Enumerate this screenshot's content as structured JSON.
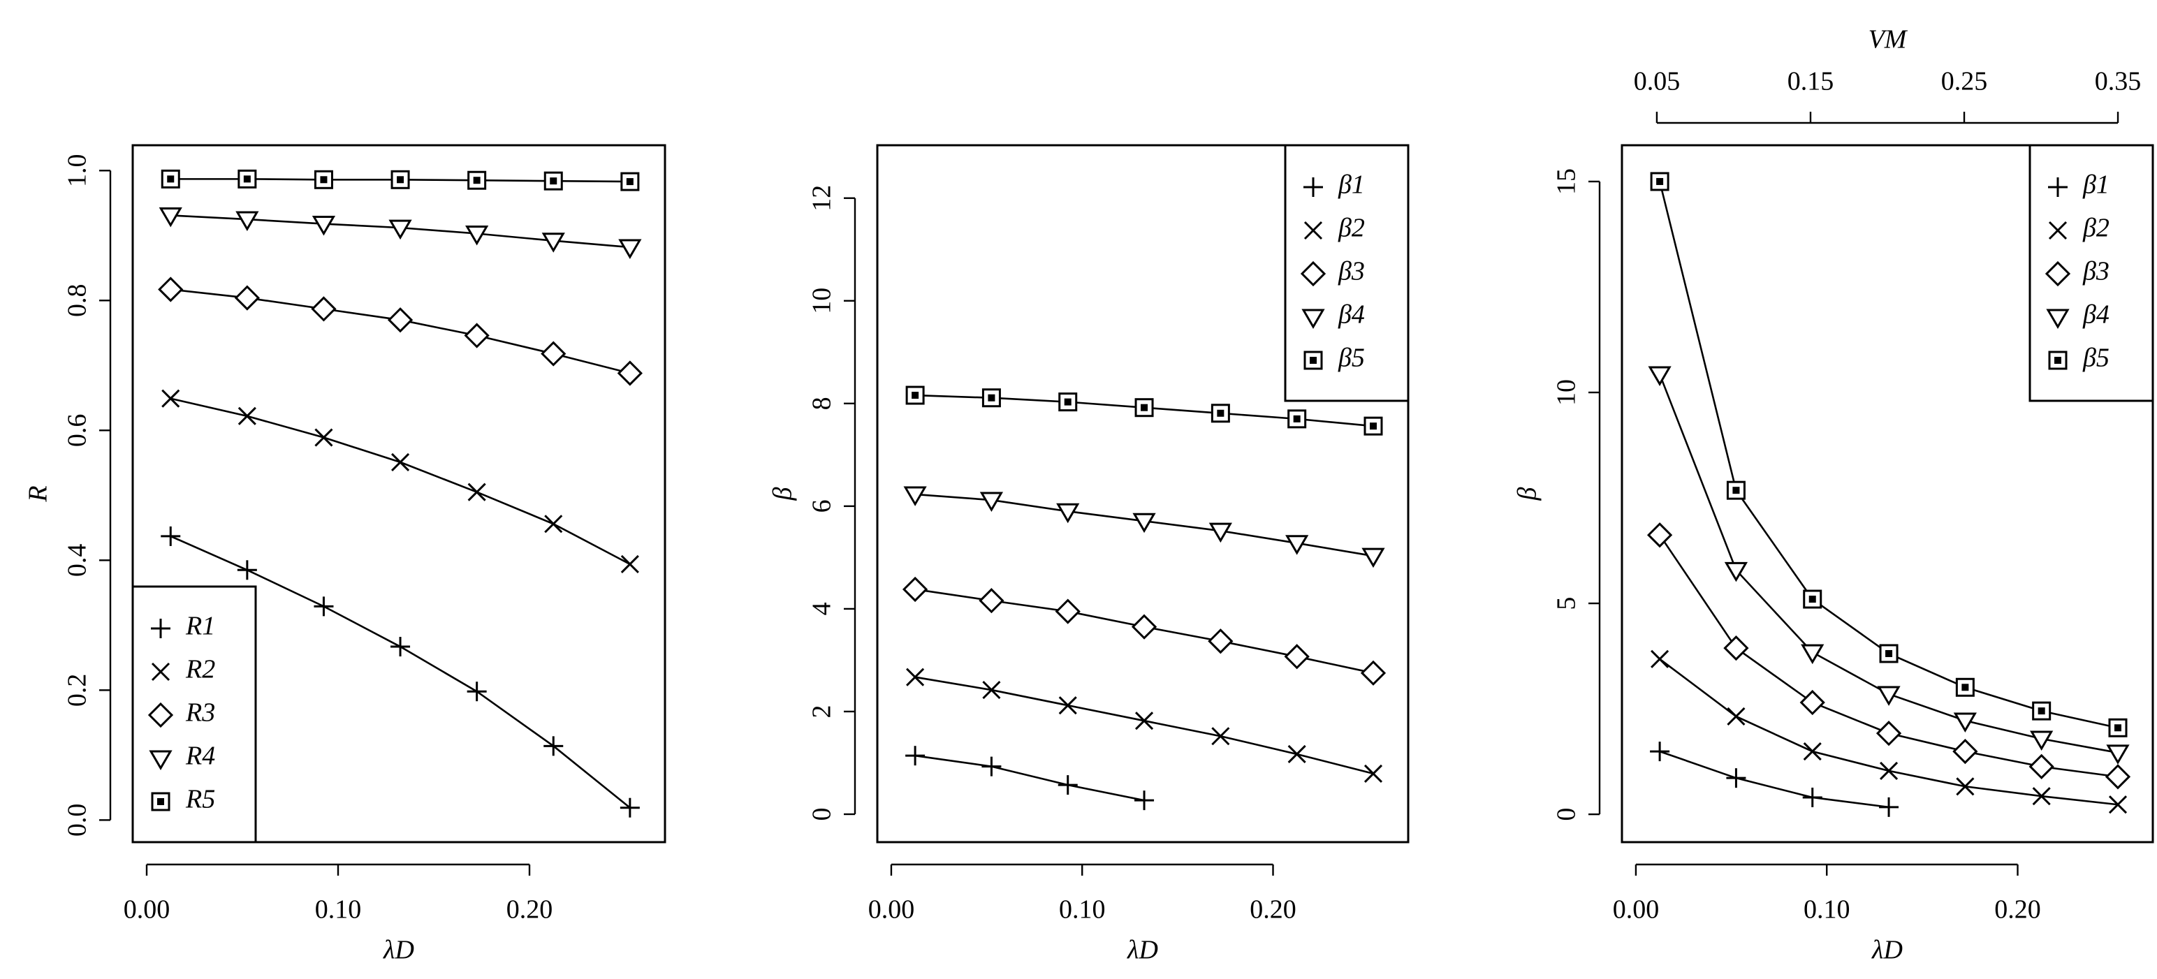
{
  "chart_data": [
    {
      "type": "line",
      "x_label": "λD",
      "y_label": "R",
      "x": [
        0.0125,
        0.0525,
        0.0925,
        0.1325,
        0.1725,
        0.2125,
        0.2525
      ],
      "xlim": [
        -0.0073,
        0.2708
      ],
      "xticks": [
        {
          "value": 0,
          "label": "0.00"
        },
        {
          "value": 0.1,
          "label": "0.10"
        },
        {
          "value": 0.2,
          "label": "0.20"
        }
      ],
      "ylim": [
        -0.034,
        1.039
      ],
      "yticks": [
        {
          "value": 0,
          "label": "0.0"
        },
        {
          "value": 0.2,
          "label": "0.2"
        },
        {
          "value": 0.4,
          "label": "0.4"
        },
        {
          "value": 0.6,
          "label": "0.6"
        },
        {
          "value": 0.8,
          "label": "0.8"
        },
        {
          "value": 1,
          "label": "1.0"
        }
      ],
      "legend": "bottom-left",
      "series": [
        {
          "name": "R1",
          "color": "#000000",
          "marker": "plus",
          "values": [
            0.437,
            0.385,
            0.329,
            0.267,
            0.198,
            0.114,
            0.019
          ]
        },
        {
          "name": "R2",
          "color": "#000000",
          "marker": "cross",
          "values": [
            0.649,
            0.622,
            0.589,
            0.551,
            0.505,
            0.456,
            0.394
          ]
        },
        {
          "name": "R3",
          "color": "#000000",
          "marker": "diamond",
          "values": [
            0.817,
            0.804,
            0.787,
            0.77,
            0.746,
            0.718,
            0.688
          ]
        },
        {
          "name": "R4",
          "color": "#000000",
          "marker": "triangle-down",
          "values": [
            0.931,
            0.925,
            0.918,
            0.912,
            0.903,
            0.892,
            0.882
          ]
        },
        {
          "name": "R5",
          "color": "#000000",
          "marker": "boxed-square",
          "values": [
            0.987,
            0.987,
            0.986,
            0.986,
            0.985,
            0.984,
            0.983
          ]
        }
      ]
    },
    {
      "type": "line",
      "x_label": "λD",
      "y_label": "β",
      "x": [
        0.0125,
        0.0525,
        0.0925,
        0.1325,
        0.1725,
        0.2125,
        0.2525
      ],
      "xlim": [
        -0.0073,
        0.2708
      ],
      "xticks": [
        {
          "value": 0,
          "label": "0.00"
        },
        {
          "value": 0.1,
          "label": "0.10"
        },
        {
          "value": 0.2,
          "label": "0.20"
        }
      ],
      "ylim": [
        -0.544,
        13.03
      ],
      "yticks": [
        0,
        2,
        4,
        6,
        8,
        10,
        12
      ],
      "legend": "top-right",
      "series": [
        {
          "name": "β1",
          "color": "#000000",
          "marker": "plus",
          "values": [
            1.14,
            0.93,
            0.57,
            0.27,
            null,
            null,
            null
          ]
        },
        {
          "name": "β2",
          "color": "#000000",
          "marker": "cross",
          "values": [
            2.67,
            2.42,
            2.12,
            1.82,
            1.52,
            1.17,
            0.79
          ]
        },
        {
          "name": "β3",
          "color": "#000000",
          "marker": "diamond",
          "values": [
            4.38,
            4.16,
            3.95,
            3.65,
            3.37,
            3.07,
            2.75
          ]
        },
        {
          "name": "β4",
          "color": "#000000",
          "marker": "triangle-down",
          "values": [
            6.23,
            6.12,
            5.9,
            5.71,
            5.52,
            5.28,
            5.03
          ]
        },
        {
          "name": "β5",
          "color": "#000000",
          "marker": "boxed-square",
          "values": [
            8.16,
            8.11,
            8.03,
            7.92,
            7.81,
            7.7,
            7.56
          ]
        }
      ]
    },
    {
      "type": "line",
      "x_label": "λD",
      "y_label": "β",
      "x2_label": "VM",
      "x": [
        0.0125,
        0.0525,
        0.0925,
        0.1325,
        0.1725,
        0.2125,
        0.2525
      ],
      "xlim": [
        -0.0073,
        0.2708
      ],
      "xticks": [
        {
          "value": 0,
          "label": "0.00"
        },
        {
          "value": 0.1,
          "label": "0.10"
        },
        {
          "value": 0.2,
          "label": "0.20"
        }
      ],
      "x2lim": [
        0.0273,
        0.3727
      ],
      "x2ticks": [
        0.05,
        0.15,
        0.25,
        0.35
      ],
      "ylim": [
        -0.66,
        15.86
      ],
      "yticks": [
        0,
        5,
        10,
        15
      ],
      "legend": "top-right",
      "series": [
        {
          "name": "β1",
          "color": "#000000",
          "marker": "plus",
          "values": [
            1.49,
            0.86,
            0.4,
            0.17,
            null,
            null,
            null
          ]
        },
        {
          "name": "β2",
          "color": "#000000",
          "marker": "cross",
          "values": [
            3.68,
            2.32,
            1.49,
            1.03,
            0.66,
            0.43,
            0.23
          ]
        },
        {
          "name": "β3",
          "color": "#000000",
          "marker": "diamond",
          "values": [
            6.62,
            3.94,
            2.65,
            1.92,
            1.49,
            1.13,
            0.89
          ]
        },
        {
          "name": "β4",
          "color": "#000000",
          "marker": "triangle-down",
          "values": [
            10.43,
            5.79,
            3.84,
            2.85,
            2.22,
            1.79,
            1.46
          ]
        },
        {
          "name": "β5",
          "color": "#000000",
          "marker": "boxed-square",
          "values": [
            15.0,
            7.68,
            5.1,
            3.81,
            3.01,
            2.45,
            2.05
          ]
        }
      ]
    }
  ]
}
